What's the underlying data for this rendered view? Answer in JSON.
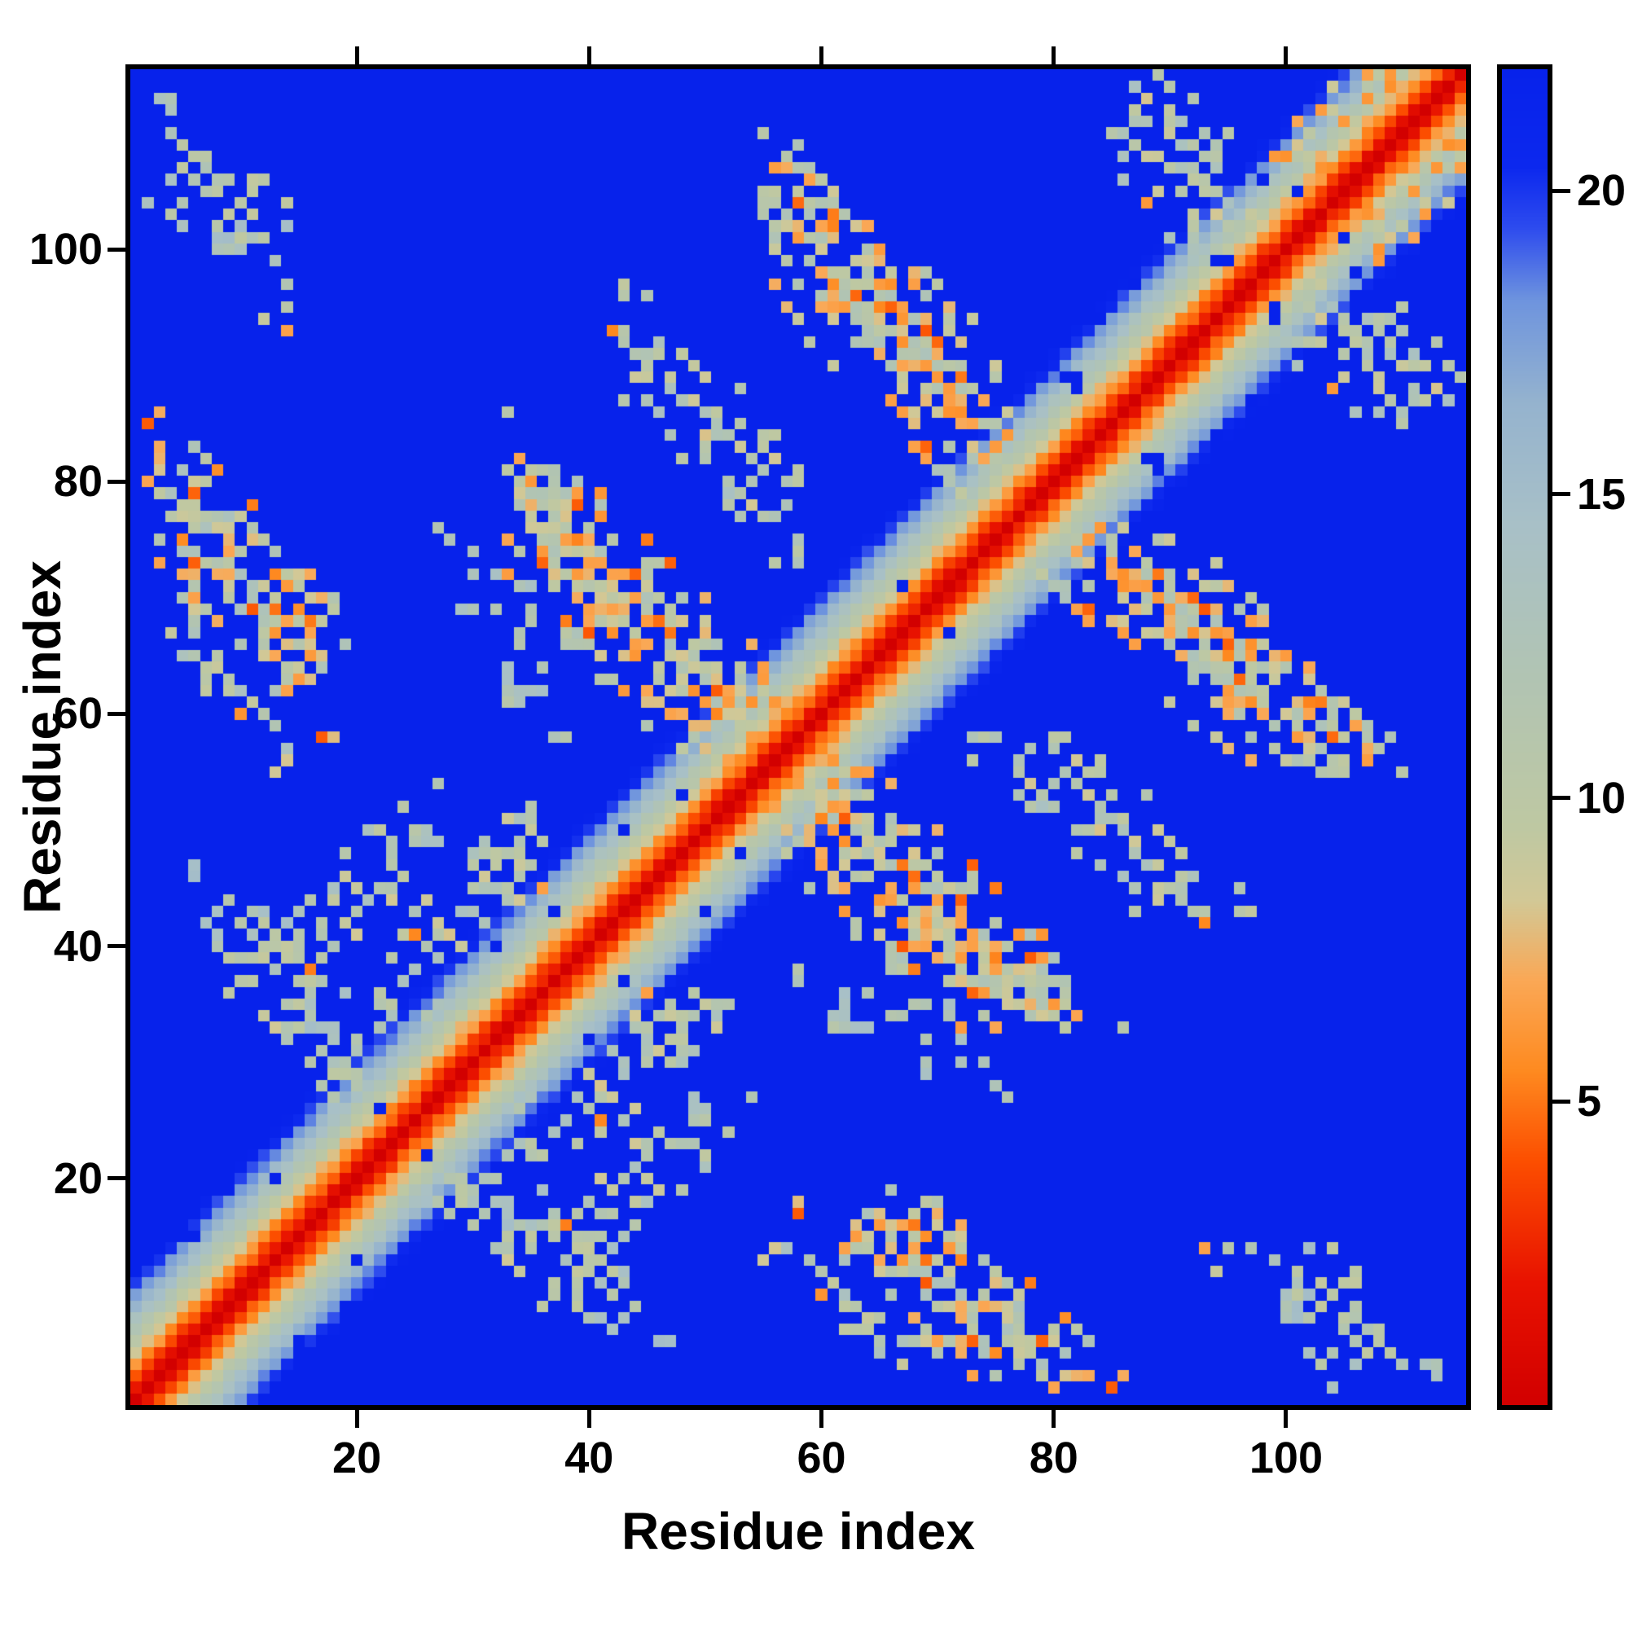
{
  "figure": {
    "background": "#ffffff",
    "spine_color": "#000000",
    "tick_color": "#000000"
  },
  "chart_data": {
    "type": "heatmap",
    "title": "",
    "xlabel": "Residue index",
    "ylabel": "Residue index",
    "n_residues": 115,
    "x_range": [
      1,
      115
    ],
    "y_range": [
      1,
      115
    ],
    "x_ticks": [
      20,
      40,
      60,
      80,
      100
    ],
    "y_ticks": [
      20,
      40,
      60,
      80,
      100
    ],
    "colorbar": {
      "vmin": 0,
      "vmax": 22,
      "ticks": [
        5,
        10,
        15,
        20
      ],
      "orientation": "vertical",
      "position": "right"
    },
    "colormap": {
      "name": "reversed-jet-like (red = short distance, blue = long distance)",
      "background_hex": "#0722eb",
      "stops": [
        [
          0,
          [
            210,
            0,
            0
          ]
        ],
        [
          2,
          [
            232,
            18,
            0
          ]
        ],
        [
          4,
          [
            252,
            78,
            0
          ]
        ],
        [
          5.5,
          [
            254,
            138,
            32
          ]
        ],
        [
          7,
          [
            250,
            168,
            86
          ]
        ],
        [
          8.3,
          [
            210,
            200,
            150
          ]
        ],
        [
          9.5,
          [
            190,
            200,
            162
          ]
        ],
        [
          12,
          [
            177,
            196,
            179
          ]
        ],
        [
          14.5,
          [
            168,
            192,
            199
          ]
        ],
        [
          16.5,
          [
            149,
            179,
            206
          ]
        ],
        [
          18.2,
          [
            110,
            148,
            222
          ]
        ],
        [
          19.4,
          [
            45,
            75,
            238
          ]
        ],
        [
          20.4,
          [
            12,
            40,
            238
          ]
        ],
        [
          22,
          [
            7,
            34,
            235
          ]
        ]
      ]
    },
    "diagonal_band": {
      "slope_per_residue": 2.0,
      "noise": 1.4,
      "hole_probability": 0.03
    },
    "contact_features": [
      {
        "type": "anti",
        "c": 82,
        "a0": 2,
        "a1": 19,
        "hw": 7,
        "dmin": 6.5,
        "dmax": 13.5,
        "density": 0.85,
        "orange": 0.14,
        "hole": 0.08
      },
      {
        "type": "anti",
        "c": 72,
        "a0": 3,
        "a1": 14,
        "hw": 4,
        "dmin": 8,
        "dmax": 14,
        "density": 0.5,
        "orange": 0.05,
        "hole": 0.05
      },
      {
        "type": "anti",
        "c": 112,
        "a0": 2,
        "a1": 14,
        "hw": 6,
        "dmin": 9,
        "dmax": 15,
        "density": 0.5,
        "orange": 0.02,
        "hole": 0.06
      },
      {
        "type": "anti",
        "c": 112,
        "a0": 33,
        "a1": 56,
        "hw": 8,
        "dmin": 6,
        "dmax": 13,
        "density": 0.85,
        "orange": 0.07,
        "hole": 0.06
      },
      {
        "type": "anti",
        "c": 159,
        "a0": 55,
        "a1": 76,
        "hw": 8,
        "dmin": 6,
        "dmax": 13,
        "density": 0.8,
        "orange": 0.12,
        "hole": 0.06
      },
      {
        "type": "anti",
        "c": 198,
        "a0": 85,
        "a1": 97,
        "hw": 7,
        "dmin": 8,
        "dmax": 14,
        "density": 0.6,
        "orange": 0.04,
        "hole": 0.05
      },
      {
        "type": "par",
        "c": 6,
        "a0": 98,
        "a1": 114,
        "hw": 4,
        "dmin": 5.5,
        "dmax": 12,
        "density": 0.55,
        "orange": 0.15,
        "hole": 0.04
      },
      {
        "type": "anti",
        "c": 50,
        "a0": 6,
        "a1": 21,
        "hw": 6,
        "dmin": 9,
        "dmax": 15,
        "density": 0.45,
        "orange": 0.03,
        "hole": 0.06
      },
      {
        "type": "par",
        "c": 13,
        "a0": 20,
        "a1": 37,
        "hw": 5,
        "dmin": 8,
        "dmax": 14,
        "density": 0.5,
        "orange": 0.05,
        "hole": 0.06
      },
      {
        "type": "par",
        "c": 24,
        "a0": 12,
        "a1": 27,
        "hw": 5,
        "dmin": 8,
        "dmax": 14,
        "density": 0.45,
        "orange": 0.05,
        "hole": 0.06
      },
      {
        "type": "anti",
        "c": 135,
        "a0": 42,
        "a1": 58,
        "hw": 6,
        "dmin": 8,
        "dmax": 14,
        "density": 0.5,
        "orange": 0.04,
        "hole": 0.06
      },
      {
        "type": "anti",
        "c": 100,
        "a0": 27,
        "a1": 38,
        "hw": 6,
        "dmin": 10,
        "dmax": 15,
        "density": 0.3,
        "orange": 0.02,
        "hole": 0.05
      }
    ]
  }
}
